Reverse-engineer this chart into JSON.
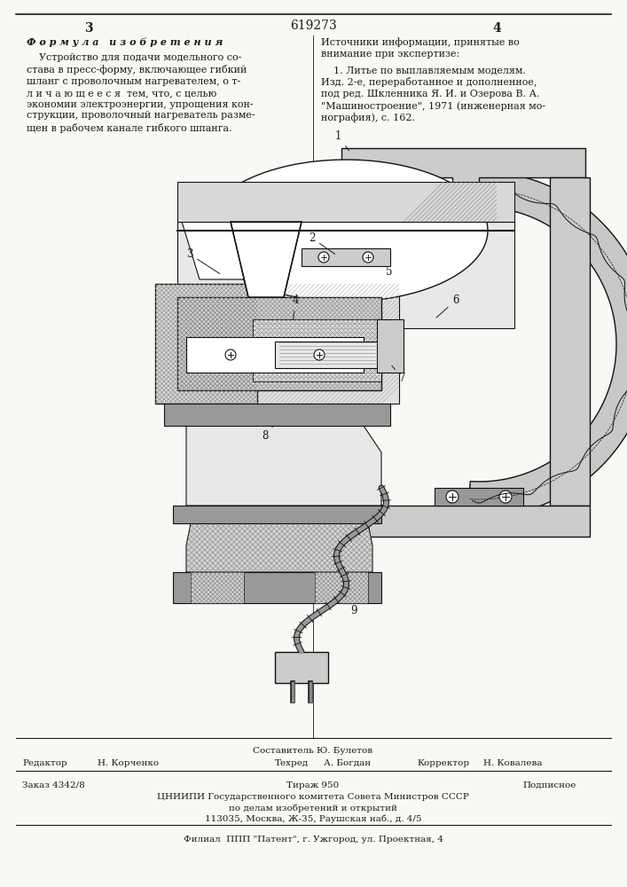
{
  "page_num_center": "619273",
  "page_num_left": "3",
  "page_num_right": "4",
  "formula_title": "Ф о р м у л а   и з о б р е т е н и я",
  "formula_text": "    Устройство для подачи модельного со-\nстава в пресс-форму, включающее гибкий\nшланг с проволочным нагревателем, о т-\nл и ч а ю щ е е с я  тем, что, с целью\nэкономии электроэнергии, упрощения кон-\nструкции, проволочный нагреватель разме-\nщен в рабочем канале гибкого шпанга.",
  "source_title": "Источники информации, принятые во\nвнимание при экспертизе:",
  "source_text": "    1. Литье по выплавляемым моделям.\nИзд. 2-е, переработанное и дополненное,\nпод ред. Шкленника Я. И. и Озерова В. А.\n\"Машиностроение\", 1971 (инженерная мо-\nнография), с. 162.",
  "footer_sestavitel": "Составитель Ю. Булетов",
  "footer_editor_label": "Редактор",
  "footer_editor_name": "Н. Корченко",
  "footer_tehred_label": "Техред",
  "footer_tehred_name": "А. Богдан",
  "footer_korrektor_label": "Корректор",
  "footer_korrektor_name": "Н. Ковалева",
  "footer_zakaz": "Заказ 4342/8",
  "footer_tirazh": "Тираж 950",
  "footer_podpisnoe": "Подписное",
  "footer_cniip": "ЦНИИПИ Государственного комитета Совета Министров СССР",
  "footer_dela": "по делам изобретений и открытий",
  "footer_addr": "113035, Москва, Ж-35, Раушская наб., д. 4/5",
  "footer_filial": "Филиал  ППП \"Патент\", г. Ужгород, ул. Проектная, 4",
  "bg_color": "#f8f8f4",
  "text_color": "#1a1a1a"
}
